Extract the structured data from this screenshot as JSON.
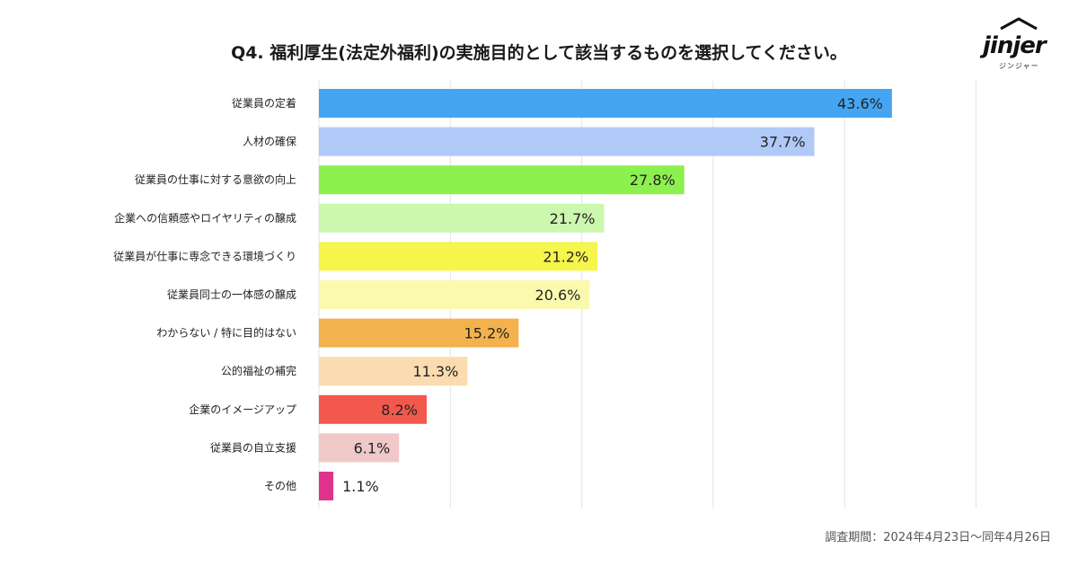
{
  "chart_data": {
    "type": "bar",
    "orientation": "horizontal",
    "title": "Q4. 福利厚生(法定外福利)の実施目的として該当するものを選択してください。",
    "categories": [
      "従業員の定着",
      "人材の確保",
      "従業員の仕事に対する意欲の向上",
      "企業への信頼感やロイヤリティの醸成",
      "従業員が仕事に専念できる環境づくり",
      "従業員同士の一体感の醸成",
      "わからない / 特に目的はない",
      "公的福祉の補完",
      "企業のイメージアップ",
      "従業員の自立支援",
      "その他"
    ],
    "values": [
      43.6,
      37.7,
      27.8,
      21.7,
      21.2,
      20.6,
      15.2,
      11.3,
      8.2,
      6.1,
      1.1
    ],
    "value_labels": [
      "43.6%",
      "37.7%",
      "27.8%",
      "21.7%",
      "21.2%",
      "20.6%",
      "15.2%",
      "11.3%",
      "8.2%",
      "6.1%",
      "1.1%"
    ],
    "colors": [
      "#46a5f0",
      "#b0c9f7",
      "#8cf04e",
      "#cbf7ae",
      "#f5f54c",
      "#fbf9ae",
      "#f4b24e",
      "#fbdcb0",
      "#f2594c",
      "#f0c8c8",
      "#e0348c"
    ],
    "xlim": [
      0,
      50
    ],
    "grid": true,
    "legend": "none",
    "xlabel": "",
    "ylabel": ""
  },
  "footnote": "調査期間：2024年4月23日～同年4月26日",
  "logo": {
    "word": "jinjer",
    "sub": "ジンジャー"
  }
}
